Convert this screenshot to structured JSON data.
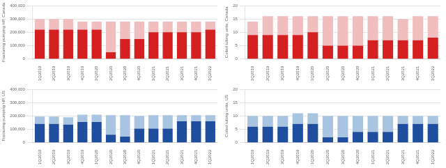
{
  "chart_data": [
    {
      "type": "bar",
      "stacked": true,
      "grid": true,
      "ylabel": "Fracturing pumping HP, Canada",
      "categories": [
        "1Q2019",
        "2Q2019",
        "3Q2019",
        "4Q2019",
        "1Q2020",
        "2Q2020",
        "3Q2020",
        "4Q2020",
        "1Q2021",
        "2Q2021",
        "3Q2021",
        "4Q2021",
        "1Q2022"
      ],
      "series": [
        {
          "color": "#d42020",
          "values": [
            220000,
            220000,
            220000,
            220000,
            220000,
            50000,
            150000,
            150000,
            200000,
            200000,
            200000,
            200000,
            220000
          ]
        },
        {
          "color": "#f0bebe",
          "values": [
            80000,
            80000,
            80000,
            60000,
            60000,
            230000,
            130000,
            130000,
            80000,
            80000,
            80000,
            80000,
            60000
          ]
        }
      ],
      "ylim": [
        0,
        400000
      ],
      "yticks": [
        0,
        {
          "value": 100000,
          "label": "100,000"
        },
        {
          "value": 200000,
          "label": "200,000"
        },
        {
          "value": 300000,
          "label": "300,000"
        },
        {
          "value": 400000,
          "label": "400,000"
        }
      ]
    },
    {
      "type": "bar",
      "stacked": true,
      "grid": true,
      "ylabel": "Coiled tubing units, Canada",
      "categories": [
        "1Q2019",
        "2Q2019",
        "3Q2019",
        "4Q2019",
        "1Q2020",
        "2Q2020",
        "3Q2020",
        "4Q2020",
        "1Q2021",
        "2Q2021",
        "3Q2021",
        "4Q2021",
        "1Q2022"
      ],
      "series": [
        {
          "color": "#d42020",
          "values": [
            9,
            9,
            9,
            9,
            10,
            5,
            5,
            5,
            7,
            7,
            7,
            7,
            8
          ]
        },
        {
          "color": "#f0bebe",
          "values": [
            5,
            7,
            7,
            7,
            6,
            11,
            11,
            11,
            9,
            9,
            8,
            9,
            8
          ]
        }
      ],
      "ylim": [
        0,
        20
      ],
      "yticks": [
        0,
        5,
        10,
        15,
        20
      ]
    },
    {
      "type": "bar",
      "stacked": true,
      "grid": true,
      "ylabel": "Fracturing pumping HP, US",
      "categories": [
        "1Q2019",
        "2Q2019",
        "3Q2019",
        "4Q2019",
        "1Q2020",
        "2Q2020",
        "3Q2020",
        "4Q2020",
        "1Q2021",
        "2Q2021",
        "3Q2021",
        "4Q2021",
        "1Q2022"
      ],
      "series": [
        {
          "color": "#1f4e9e",
          "values": [
            140000,
            140000,
            135000,
            155000,
            155000,
            60000,
            45000,
            105000,
            105000,
            105000,
            160000,
            160000,
            160000
          ]
        },
        {
          "color": "#a8c4e0",
          "values": [
            55000,
            55000,
            55000,
            55000,
            55000,
            145000,
            160000,
            95000,
            100000,
            100000,
            45000,
            45000,
            45000
          ]
        }
      ],
      "ylim": [
        0,
        400000
      ],
      "yticks": [
        0,
        {
          "value": 100000,
          "label": "100,000"
        },
        {
          "value": 200000,
          "label": "200,000"
        },
        {
          "value": 300000,
          "label": "300,000"
        },
        {
          "value": 400000,
          "label": "400,000"
        }
      ]
    },
    {
      "type": "bar",
      "stacked": true,
      "grid": true,
      "ylabel": "Coiled tubing units, US",
      "categories": [
        "1Q2019",
        "2Q2019",
        "3Q2019",
        "4Q2019",
        "1Q2020",
        "2Q2020",
        "3Q2020",
        "4Q2020",
        "1Q2021",
        "2Q2021",
        "3Q2021",
        "4Q2021",
        "1Q2022"
      ],
      "series": [
        {
          "color": "#1f4e9e",
          "values": [
            6,
            6,
            6,
            7,
            7,
            2,
            2,
            4,
            4,
            4,
            7,
            7,
            7
          ]
        },
        {
          "color": "#a8c4e0",
          "values": [
            4,
            4,
            4,
            4,
            4,
            8,
            8,
            6,
            6,
            6,
            3,
            3,
            3
          ]
        }
      ],
      "ylim": [
        0,
        20
      ],
      "yticks": [
        0,
        5,
        10,
        15,
        20
      ]
    }
  ]
}
